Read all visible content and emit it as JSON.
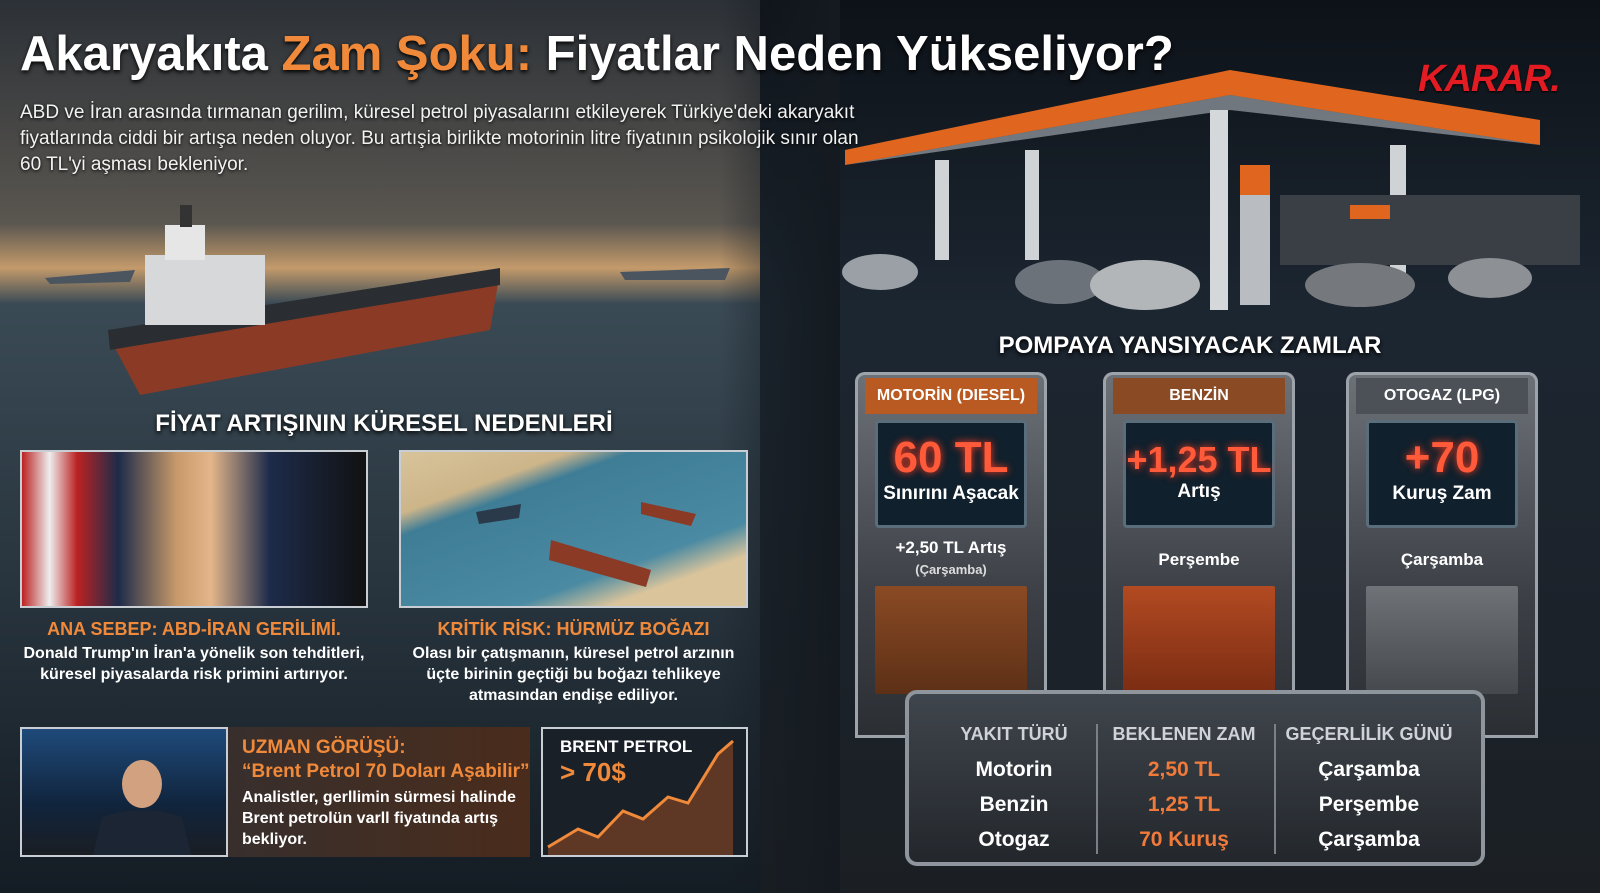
{
  "header": {
    "title_parts": [
      "Akaryakıta",
      "Zam Şoku:",
      "Fiyatlar Neden Yükseliyor?"
    ],
    "logo": "KARAR.",
    "intro": "ABD ve İran arasında tırmanan gerilim, küresel petrol piyasalarını etkileyerek Türkiye'deki akaryakıt fiyatlarında ciddi bir artışa neden oluyor. Bu artışia birlikte motorinin litre fiyatının psikolojik sınır olan 60 TL'yi aşması bekleniyor."
  },
  "causes": {
    "heading": "FİYAT ARTIŞININ KÜRESEL NEDENLERİ",
    "items": [
      {
        "title": "ANA SEBEP: ABD-İRAN GERİLİMİ.",
        "text": "Donald Trump'ın İran'a yönelik son tehditleri, küresel piyasalarda risk primini artırıyor."
      },
      {
        "title": "KRİTİK RİSK: HÜRMÜZ BOĞAZI",
        "text": "Olası bir çatışmanın, küresel petrol arzının üçte birinin geçtiği bu boğazı tehlikeye atmasından endişe ediliyor."
      }
    ]
  },
  "expert": {
    "label": "UZMAN GÖRÜŞÜ:",
    "quote": "“Brent Petrol 70 Doları Aşabilir”",
    "text": "Analistler, gerllimin sürmesi halinde Brent petrolün varll fiyatında artış bekliyor."
  },
  "brent": {
    "label": "BRENT PETROL",
    "value": "> 70$"
  },
  "pumps": {
    "heading": "POMPAYA YANSIYACAK ZAMLAR",
    "items": [
      {
        "name": "MOTORİN (DIESEL)",
        "big": "60 TL",
        "sub": "Sınırını Aşacak",
        "note": "+2,50 TL Artış",
        "note2": "(Çarşamba)"
      },
      {
        "name": "BENZİN",
        "big": "+1,25 TL",
        "sub": "Artış",
        "note": "Perşembe"
      },
      {
        "name": "OTOGAZ (LPG)",
        "big": "+70",
        "sub": "Kuruş Zam",
        "note": "Çarşamba"
      }
    ]
  },
  "table": {
    "headers": [
      "YAKIT TÜRÜ",
      "BEKLENEN ZAM",
      "GEÇERLİLİK GÜNÜ"
    ],
    "rows": [
      [
        "Motorin",
        "2,50 TL",
        "Çarşamba"
      ],
      [
        "Benzin",
        "1,25 TL",
        "Perşembe"
      ],
      [
        "Otogaz",
        "70 Kuruş",
        "Çarşamba"
      ]
    ]
  }
}
